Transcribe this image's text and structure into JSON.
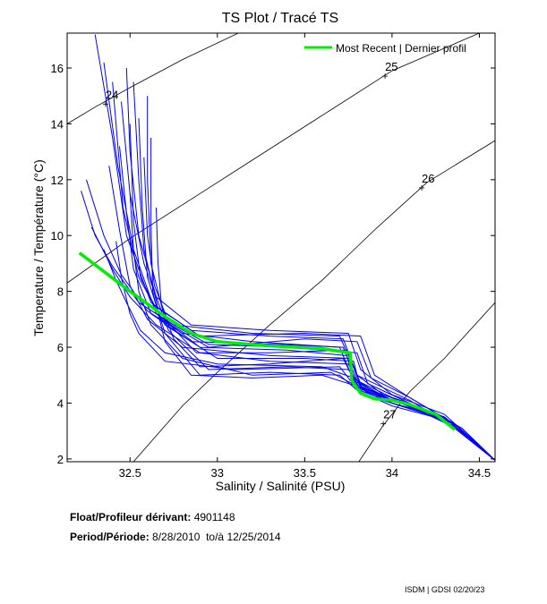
{
  "chart_data": {
    "type": "line",
    "title": "TS Plot / Tracé TS",
    "xlabel": "Salinity / Salinité (PSU)",
    "ylabel": "Temperature / Température (°C)",
    "xlim": [
      32.14,
      34.59
    ],
    "ylim": [
      1.9,
      17.25
    ],
    "x_ticks": [
      "32.5",
      "33",
      "33.5",
      "34",
      "34.5"
    ],
    "y_ticks": [
      "2",
      "4",
      "6",
      "8",
      "10",
      "12",
      "14",
      "16"
    ],
    "grid": false,
    "legend": {
      "placement": "top-right",
      "entries": [
        "Most Recent | Dernier profil"
      ]
    },
    "colors": {
      "profiles": "#0000ff",
      "most_recent": "#00ee00",
      "density": "#000000"
    },
    "density_contours": [
      {
        "label": "24",
        "label_at": [
          32.36,
          14.9
        ],
        "points": [
          [
            32.14,
            14.0
          ],
          [
            32.3,
            14.6
          ],
          [
            32.5,
            15.3
          ],
          [
            32.8,
            16.3
          ],
          [
            33.12,
            17.25
          ]
        ]
      },
      {
        "label": "25",
        "label_at": [
          33.96,
          15.9
        ],
        "points": [
          [
            32.14,
            8.3
          ],
          [
            32.5,
            9.9
          ],
          [
            33.0,
            11.9
          ],
          [
            33.5,
            13.9
          ],
          [
            34.0,
            15.9
          ],
          [
            34.5,
            17.25
          ]
        ]
      },
      {
        "label": "26",
        "label_at": [
          34.17,
          11.9
        ],
        "points": [
          [
            32.52,
            1.9
          ],
          [
            32.8,
            3.9
          ],
          [
            33.0,
            5.1
          ],
          [
            33.3,
            6.8
          ],
          [
            33.6,
            8.4
          ],
          [
            33.9,
            10.2
          ],
          [
            34.2,
            11.9
          ],
          [
            34.59,
            13.4
          ]
        ]
      },
      {
        "label": "27",
        "label_at": [
          33.95,
          3.45
        ],
        "points": [
          [
            33.81,
            1.9
          ],
          [
            33.95,
            3.2
          ],
          [
            34.1,
            4.4
          ],
          [
            34.3,
            5.6
          ],
          [
            34.59,
            7.6
          ]
        ]
      }
    ],
    "series": [
      {
        "name": "Most Recent | Dernier profil",
        "points": [
          [
            32.21,
            9.38
          ],
          [
            32.5,
            8.0
          ],
          [
            32.7,
            7.1
          ],
          [
            32.85,
            6.5
          ],
          [
            33.0,
            6.2
          ],
          [
            33.3,
            6.05
          ],
          [
            33.6,
            5.95
          ],
          [
            33.76,
            5.8
          ],
          [
            33.77,
            4.8
          ],
          [
            33.82,
            4.35
          ],
          [
            33.9,
            4.15
          ],
          [
            34.0,
            4.1
          ],
          [
            34.1,
            3.95
          ],
          [
            34.25,
            3.6
          ],
          [
            34.36,
            3.05
          ]
        ]
      },
      {
        "name": "profiles",
        "profiles": [
          [
            [
              32.3,
              17.2
            ],
            [
              32.4,
              13.5
            ],
            [
              32.48,
              10.0
            ],
            [
              32.62,
              7.6
            ],
            [
              32.85,
              6.6
            ],
            [
              33.3,
              6.4
            ],
            [
              33.72,
              6.3
            ],
            [
              33.8,
              5.0
            ],
            [
              33.95,
              4.3
            ],
            [
              34.3,
              3.5
            ],
            [
              34.59,
              1.95
            ]
          ],
          [
            [
              32.35,
              16.2
            ],
            [
              32.43,
              12.5
            ],
            [
              32.52,
              9.5
            ],
            [
              32.65,
              7.2
            ],
            [
              32.9,
              6.0
            ],
            [
              33.4,
              5.9
            ],
            [
              33.74,
              5.7
            ],
            [
              33.79,
              4.7
            ],
            [
              34.0,
              4.1
            ],
            [
              34.3,
              3.5
            ],
            [
              34.59,
              1.95
            ]
          ],
          [
            [
              32.4,
              15.5
            ],
            [
              32.46,
              11.0
            ],
            [
              32.55,
              8.5
            ],
            [
              32.7,
              6.8
            ],
            [
              33.0,
              5.6
            ],
            [
              33.5,
              5.6
            ],
            [
              33.78,
              5.5
            ],
            [
              33.82,
              4.5
            ],
            [
              34.05,
              4.0
            ],
            [
              34.35,
              3.3
            ],
            [
              34.59,
              1.95
            ]
          ],
          [
            [
              32.45,
              14.8
            ],
            [
              32.5,
              11.5
            ],
            [
              32.58,
              9.0
            ],
            [
              32.72,
              6.6
            ],
            [
              32.95,
              5.2
            ],
            [
              33.4,
              5.3
            ],
            [
              33.75,
              5.2
            ],
            [
              33.85,
              4.4
            ],
            [
              34.1,
              3.9
            ],
            [
              34.4,
              3.0
            ],
            [
              34.59,
              1.95
            ]
          ],
          [
            [
              32.55,
              14.2
            ],
            [
              32.57,
              11.0
            ],
            [
              32.6,
              8.5
            ],
            [
              32.7,
              6.5
            ],
            [
              32.9,
              5.0
            ],
            [
              33.3,
              5.1
            ],
            [
              33.7,
              5.0
            ],
            [
              33.83,
              4.3
            ],
            [
              34.0,
              4.0
            ],
            [
              34.3,
              3.4
            ],
            [
              34.59,
              1.95
            ]
          ],
          [
            [
              32.25,
              12.0
            ],
            [
              32.35,
              10.0
            ],
            [
              32.45,
              8.6
            ],
            [
              32.6,
              7.3
            ],
            [
              32.8,
              6.5
            ],
            [
              33.2,
              6.2
            ],
            [
              33.7,
              6.0
            ],
            [
              33.78,
              4.8
            ],
            [
              34.0,
              4.1
            ],
            [
              34.3,
              3.5
            ],
            [
              34.59,
              1.95
            ]
          ],
          [
            [
              32.62,
              13.5
            ],
            [
              32.62,
              10.5
            ],
            [
              32.63,
              8.0
            ],
            [
              32.7,
              6.2
            ],
            [
              32.85,
              5.0
            ],
            [
              33.2,
              4.9
            ],
            [
              33.6,
              5.0
            ],
            [
              33.8,
              4.6
            ],
            [
              34.05,
              4.0
            ],
            [
              34.35,
              3.2
            ],
            [
              34.59,
              1.95
            ]
          ],
          [
            [
              32.5,
              14.0
            ],
            [
              32.52,
              10.5
            ],
            [
              32.56,
              8.5
            ],
            [
              32.68,
              7.0
            ],
            [
              32.95,
              6.0
            ],
            [
              33.5,
              6.3
            ],
            [
              33.8,
              6.2
            ],
            [
              33.88,
              4.9
            ],
            [
              34.1,
              4.2
            ],
            [
              34.4,
              3.1
            ],
            [
              34.59,
              1.95
            ]
          ],
          [
            [
              32.38,
              12.5
            ],
            [
              32.44,
              10.2
            ],
            [
              32.5,
              8.2
            ],
            [
              32.6,
              7.0
            ],
            [
              32.8,
              6.0
            ],
            [
              33.3,
              5.7
            ],
            [
              33.76,
              5.6
            ],
            [
              33.82,
              4.6
            ],
            [
              34.0,
              4.1
            ],
            [
              34.3,
              3.5
            ],
            [
              34.59,
              1.95
            ]
          ],
          [
            [
              32.58,
              12.8
            ],
            [
              32.6,
              10.0
            ],
            [
              32.64,
              8.2
            ],
            [
              32.72,
              6.9
            ],
            [
              32.95,
              6.1
            ],
            [
              33.4,
              6.0
            ],
            [
              33.8,
              5.8
            ],
            [
              33.86,
              4.7
            ],
            [
              34.1,
              4.0
            ],
            [
              34.4,
              3.1
            ],
            [
              34.59,
              1.95
            ]
          ],
          [
            [
              32.48,
              16.0
            ],
            [
              32.5,
              13.0
            ],
            [
              32.55,
              10.0
            ],
            [
              32.65,
              7.8
            ],
            [
              32.85,
              6.8
            ],
            [
              33.3,
              6.6
            ],
            [
              33.75,
              6.5
            ],
            [
              33.82,
              5.2
            ],
            [
              34.0,
              4.3
            ],
            [
              34.3,
              3.6
            ],
            [
              34.59,
              1.95
            ]
          ],
          [
            [
              32.42,
              9.8
            ],
            [
              32.45,
              8.5
            ],
            [
              32.5,
              7.2
            ],
            [
              32.55,
              6.5
            ],
            [
              32.7,
              5.5
            ],
            [
              33.1,
              5.2
            ],
            [
              33.7,
              5.3
            ],
            [
              33.8,
              4.5
            ],
            [
              34.0,
              4.0
            ],
            [
              34.3,
              3.5
            ],
            [
              34.59,
              1.95
            ]
          ],
          [
            [
              32.28,
              10.3
            ],
            [
              32.4,
              8.8
            ],
            [
              32.5,
              7.8
            ],
            [
              32.65,
              6.8
            ],
            [
              32.9,
              5.8
            ],
            [
              33.3,
              5.5
            ],
            [
              33.75,
              5.4
            ],
            [
              33.82,
              4.4
            ],
            [
              34.0,
              3.9
            ],
            [
              34.3,
              3.4
            ],
            [
              34.59,
              1.95
            ]
          ],
          [
            [
              32.65,
              11.0
            ],
            [
              32.66,
              9.0
            ],
            [
              32.68,
              7.5
            ],
            [
              32.75,
              6.3
            ],
            [
              32.9,
              5.3
            ],
            [
              33.3,
              5.4
            ],
            [
              33.72,
              5.6
            ],
            [
              33.8,
              4.6
            ],
            [
              34.05,
              4.1
            ],
            [
              34.35,
              3.3
            ],
            [
              34.59,
              1.95
            ]
          ],
          [
            [
              32.52,
              15.5
            ],
            [
              32.55,
              12.0
            ],
            [
              32.58,
              9.5
            ],
            [
              32.66,
              7.4
            ],
            [
              32.9,
              6.4
            ],
            [
              33.5,
              6.5
            ],
            [
              33.82,
              6.4
            ],
            [
              33.9,
              5.0
            ],
            [
              34.1,
              4.2
            ],
            [
              34.4,
              3.1
            ],
            [
              34.59,
              1.95
            ]
          ],
          [
            [
              32.44,
              13.2
            ],
            [
              32.48,
              10.8
            ],
            [
              32.52,
              8.8
            ],
            [
              32.62,
              7.2
            ],
            [
              32.85,
              6.2
            ],
            [
              33.35,
              6.1
            ],
            [
              33.72,
              6.0
            ],
            [
              33.8,
              4.8
            ],
            [
              34.0,
              4.2
            ],
            [
              34.3,
              3.5
            ],
            [
              34.59,
              1.95
            ]
          ],
          [
            [
              32.35,
              9.5
            ],
            [
              32.42,
              8.4
            ],
            [
              32.48,
              7.6
            ],
            [
              32.56,
              6.6
            ],
            [
              32.7,
              5.8
            ],
            [
              33.0,
              5.4
            ],
            [
              33.6,
              5.3
            ],
            [
              33.78,
              4.9
            ],
            [
              34.0,
              4.0
            ],
            [
              34.3,
              3.4
            ],
            [
              34.59,
              1.95
            ]
          ],
          [
            [
              32.6,
              15.0
            ],
            [
              32.6,
              12.0
            ],
            [
              32.62,
              9.0
            ],
            [
              32.7,
              7.0
            ],
            [
              32.88,
              5.8
            ],
            [
              33.3,
              5.8
            ],
            [
              33.74,
              5.9
            ],
            [
              33.82,
              4.7
            ],
            [
              34.0,
              4.1
            ],
            [
              34.3,
              3.5
            ],
            [
              34.59,
              1.95
            ]
          ],
          [
            [
              32.22,
              11.6
            ],
            [
              32.3,
              10.0
            ],
            [
              32.4,
              8.9
            ],
            [
              32.55,
              7.6
            ],
            [
              32.75,
              6.8
            ],
            [
              33.2,
              6.5
            ],
            [
              33.7,
              6.4
            ],
            [
              33.8,
              5.0
            ],
            [
              34.1,
              4.1
            ],
            [
              34.4,
              3.0
            ],
            [
              34.59,
              1.95
            ]
          ],
          [
            [
              32.5,
              11.5
            ],
            [
              32.52,
              9.5
            ],
            [
              32.55,
              8.0
            ],
            [
              32.62,
              6.8
            ],
            [
              32.8,
              5.6
            ],
            [
              33.2,
              5.0
            ],
            [
              33.65,
              5.1
            ],
            [
              33.8,
              4.6
            ],
            [
              34.0,
              4.0
            ],
            [
              34.3,
              3.4
            ],
            [
              34.59,
              1.95
            ]
          ]
        ]
      }
    ]
  },
  "info": {
    "float_label": "Float/Profileur dérivant:",
    "float_id": "4901148",
    "period_label": "Period/Période:",
    "period_start": "8/28/2010",
    "period_sep": "to/à",
    "period_end": "12/25/2014"
  },
  "footer": "ISDM | GDSI 02/20/23"
}
